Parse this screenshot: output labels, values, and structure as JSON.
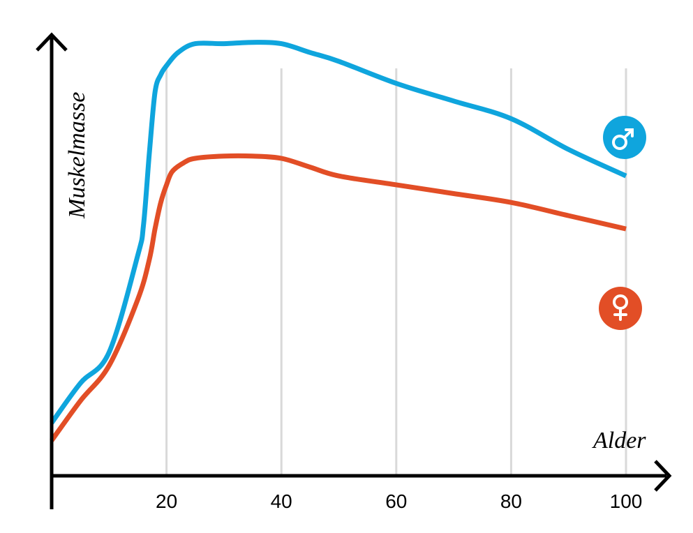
{
  "chart_data": {
    "type": "line",
    "xlabel": "Alder",
    "ylabel": "Muskelmasse",
    "x_ticks": [
      20,
      40,
      60,
      80,
      100
    ],
    "xlim": [
      0,
      100
    ],
    "ylim": [
      0,
      100
    ],
    "grid": "vertical",
    "y_ticks_shown": false,
    "series": [
      {
        "name": "♂",
        "color": "#0fa5dd",
        "icon": "male-symbol-icon",
        "points": [
          [
            0,
            12
          ],
          [
            5,
            21
          ],
          [
            10,
            28
          ],
          [
            15,
            50
          ],
          [
            16,
            57
          ],
          [
            17,
            73
          ],
          [
            18,
            87
          ],
          [
            19,
            91
          ],
          [
            20,
            93
          ],
          [
            22,
            96
          ],
          [
            25,
            98
          ],
          [
            30,
            98
          ],
          [
            35,
            98.3
          ],
          [
            40,
            98
          ],
          [
            45,
            96
          ],
          [
            50,
            94
          ],
          [
            60,
            89
          ],
          [
            70,
            85
          ],
          [
            80,
            81
          ],
          [
            90,
            74
          ],
          [
            100,
            68
          ]
        ]
      },
      {
        "name": "♀",
        "color": "#e24e26",
        "icon": "female-symbol-icon",
        "points": [
          [
            0,
            8
          ],
          [
            5,
            17
          ],
          [
            10,
            25
          ],
          [
            15,
            40
          ],
          [
            17,
            49
          ],
          [
            18,
            56
          ],
          [
            19,
            62
          ],
          [
            20,
            66
          ],
          [
            21,
            69
          ],
          [
            23,
            71
          ],
          [
            25,
            72
          ],
          [
            30,
            72.5
          ],
          [
            35,
            72.5
          ],
          [
            40,
            72
          ],
          [
            45,
            70
          ],
          [
            50,
            68
          ],
          [
            60,
            66
          ],
          [
            70,
            64
          ],
          [
            80,
            62
          ],
          [
            90,
            59
          ],
          [
            100,
            56
          ]
        ]
      }
    ]
  }
}
